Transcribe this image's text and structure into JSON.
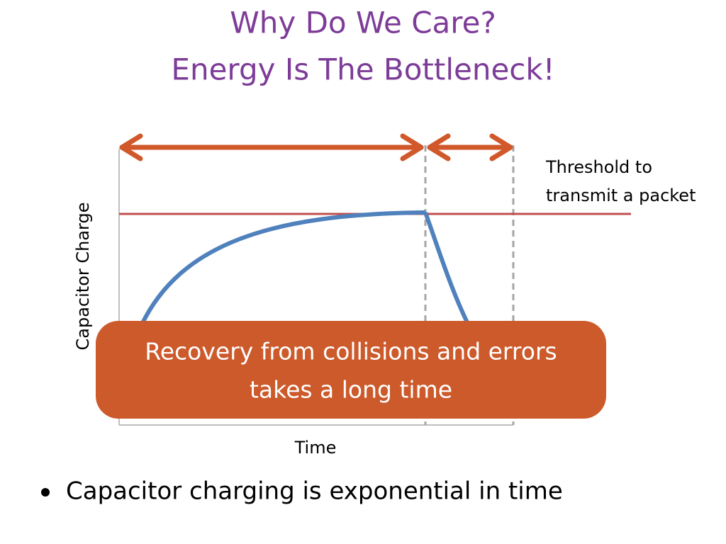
{
  "header": {
    "title_line1": "Why Do We Care?",
    "title_line2": "Energy Is The Bottleneck!"
  },
  "diagram": {
    "y_axis_label": "Capacitor Charge",
    "x_axis_label": "Time",
    "threshold_label_line1": "Threshold to",
    "threshold_label_line2": "transmit a packet",
    "callout_line1": "Recovery from collisions and errors",
    "callout_line2": "takes a long time"
  },
  "bullets": [
    "Capacitor charging is exponential in time"
  ]
}
